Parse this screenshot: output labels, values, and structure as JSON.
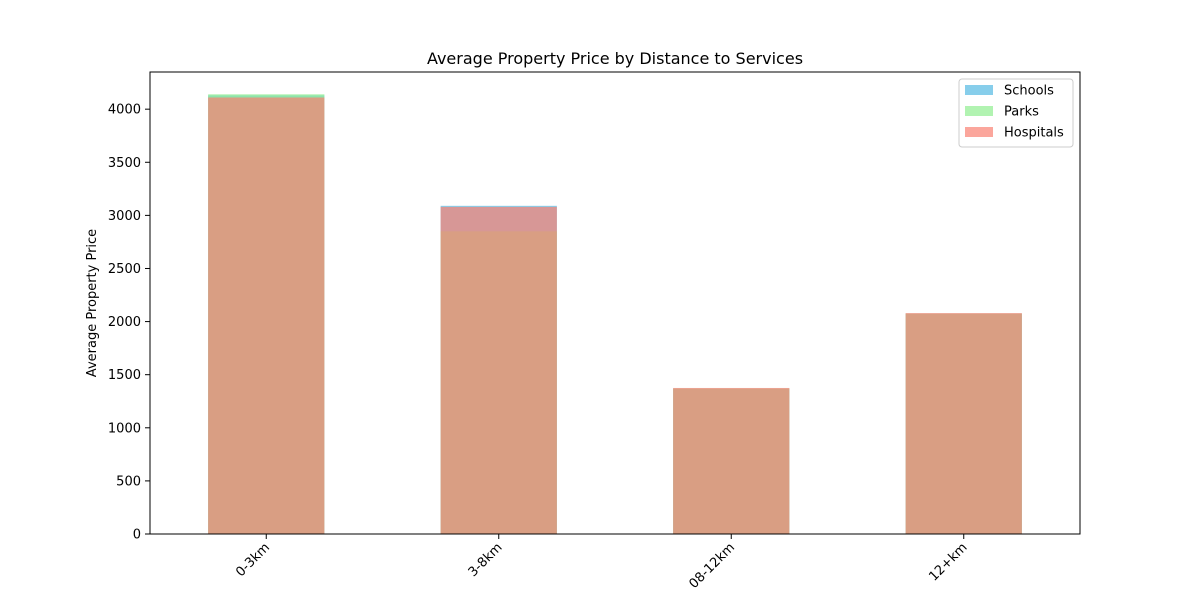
{
  "chart_data": {
    "type": "bar",
    "title": "Average Property Price by Distance to Services",
    "xlabel": "",
    "ylabel": "Average Property Price",
    "categories": [
      "0-3km",
      "3-8km",
      "08-12km",
      "12+km"
    ],
    "ylim": [
      0,
      4350
    ],
    "yticks": [
      0,
      500,
      1000,
      1500,
      2000,
      2500,
      3000,
      3500,
      4000
    ],
    "series": [
      {
        "name": "Schools",
        "values": [
          4130,
          3090,
          1370,
          2075
        ],
        "color": "#87CEEB",
        "opacity": 1.0
      },
      {
        "name": "Parks",
        "values": [
          4140,
          2850,
          1370,
          2075
        ],
        "color": "#90EE90",
        "opacity": 0.7
      },
      {
        "name": "Hospitals",
        "values": [
          4110,
          3080,
          1375,
          2080
        ],
        "color": "#FA8072",
        "opacity": 0.7
      }
    ],
    "legend_position": "top-right",
    "grid": false
  }
}
